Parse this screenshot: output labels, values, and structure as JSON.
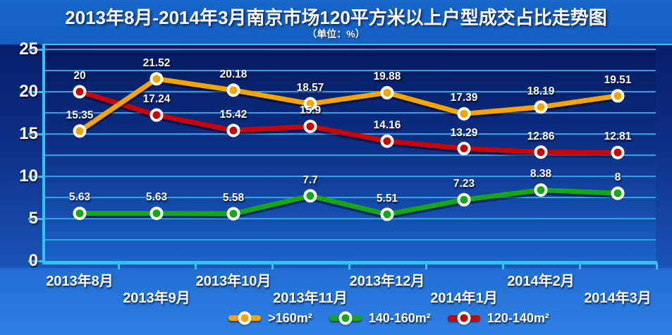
{
  "title": "2013年8月-2014年3月南京市场120平方米以上户型成交占比走势图",
  "subtitle": "（单位：%）",
  "colors": {
    "background_top": "#1766ca",
    "background_bottom": "#2f80e4",
    "plot_top": "#051a5e",
    "plot_bottom": "#1b63ca",
    "axis_cyan": "#35c2f2",
    "gridline_cyan": "#2fa9e9",
    "label_white": "#ffffff",
    "series_orange": "#f5a500",
    "series_green": "#16a616",
    "series_red": "#c80505"
  },
  "chart_data": {
    "type": "line",
    "title": "2013年8月-2014年3月南京市场120平方米以上户型成交占比走势图",
    "subtitle": "（单位：%）",
    "unit": "%",
    "categories": [
      "2013年8月",
      "2013年9月",
      "2013年10月",
      "2013年11月",
      "2013年12月",
      "2014年1月",
      "2014年2月",
      "2014年3月"
    ],
    "series": [
      {
        "name": ">160m²",
        "color": "#f5a500",
        "values": [
          15.35,
          21.52,
          20.18,
          18.57,
          19.88,
          17.39,
          18.19,
          19.51
        ]
      },
      {
        "name": "140-160m²",
        "color": "#16a616",
        "values": [
          5.63,
          5.63,
          5.58,
          7.7,
          5.51,
          7.23,
          8.38,
          8
        ]
      },
      {
        "name": "120-140m²",
        "color": "#c80505",
        "values": [
          20,
          17.24,
          15.42,
          15.9,
          14.16,
          13.29,
          12.86,
          12.81
        ]
      }
    ],
    "ylim": [
      0,
      25
    ],
    "y_major_ticks": [
      0,
      5,
      10,
      15,
      20,
      25
    ],
    "y_tick_labels": [
      "0",
      "5",
      "10",
      "15",
      "20",
      "25"
    ],
    "y_minor_step": 2.5,
    "grid": "horizontal cyan lines every 2.5",
    "marker": "circle with white ring, colored fill",
    "data_labels": "shown above every point",
    "legend_position": "bottom",
    "x_label_layout": "two staggered rows"
  }
}
